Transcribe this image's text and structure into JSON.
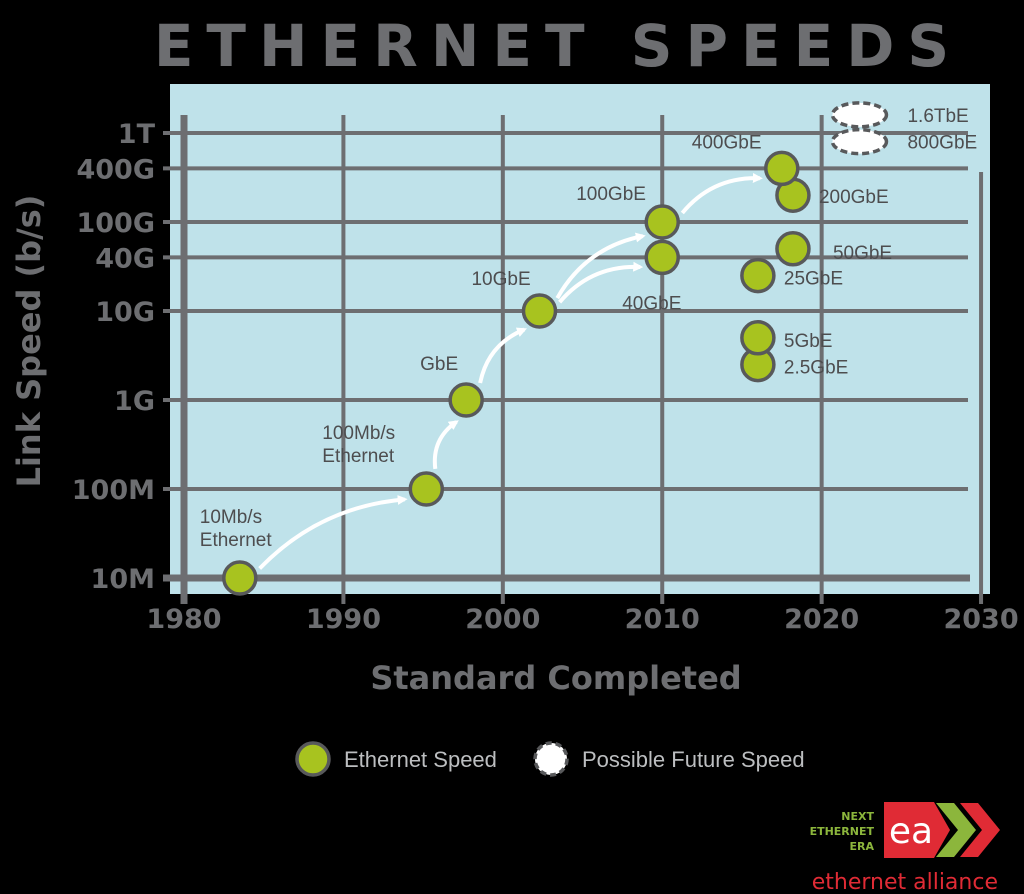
{
  "colors": {
    "background": "#000000",
    "plot_bg": "#bfe2ea",
    "grid": "#6d6e71",
    "text_gray": "#6d6e71",
    "point_fill": "#a8c31f",
    "point_stroke": "#58595b",
    "future_stroke": "#58595b",
    "arrow": "#ffffff",
    "logo_red": "#e02b35",
    "logo_green": "#8cb63c"
  },
  "chart_data": {
    "type": "scatter",
    "title": "ETHERNET SPEEDS",
    "xlabel": "Standard Completed",
    "ylabel": "Link Speed (b/s)",
    "xlim": [
      1980,
      2031
    ],
    "x_ticks": [
      1980,
      1990,
      2000,
      2010,
      2020,
      2030
    ],
    "y_scale": "log",
    "y_ticks": [
      {
        "label": "10M",
        "value": 10000000
      },
      {
        "label": "100M",
        "value": 100000000
      },
      {
        "label": "1G",
        "value": 1000000000
      },
      {
        "label": "10G",
        "value": 10000000000
      },
      {
        "label": "40G",
        "value": 40000000000
      },
      {
        "label": "100G",
        "value": 100000000000
      },
      {
        "label": "400G",
        "value": 400000000000
      },
      {
        "label": "1T",
        "value": 1000000000000
      }
    ],
    "grid": true,
    "series": [
      {
        "name": "Ethernet Speed",
        "points": [
          {
            "label": "10Mb/s\nEthernet",
            "x": 1983.5,
            "y": 10000000
          },
          {
            "label": "100Mb/s\nEthernet",
            "x": 1995.2,
            "y": 100000000
          },
          {
            "label": "GbE",
            "x": 1997.7,
            "y": 1000000000
          },
          {
            "label": "10GbE",
            "x": 2002.3,
            "y": 10000000000
          },
          {
            "label": "40GbE",
            "x": 2010,
            "y": 40000000000
          },
          {
            "label": "100GbE",
            "x": 2010,
            "y": 100000000000
          },
          {
            "label": "2.5GbE",
            "x": 2016,
            "y": 2500000000
          },
          {
            "label": "5GbE",
            "x": 2016,
            "y": 5000000000
          },
          {
            "label": "25GbE",
            "x": 2016,
            "y": 25000000000
          },
          {
            "label": "50GbE",
            "x": 2018.2,
            "y": 50000000000
          },
          {
            "label": "200GbE",
            "x": 2018.2,
            "y": 200000000000
          },
          {
            "label": "400GbE",
            "x": 2017.5,
            "y": 400000000000
          }
        ]
      },
      {
        "name": "Possible Future Speed",
        "points": [
          {
            "label": "800GbE",
            "x": 2023,
            "y": 800000000000
          },
          {
            "label": "1.6TbE",
            "x": 2023,
            "y": 1600000000000
          }
        ]
      }
    ],
    "arrows": [
      {
        "from": "10Mb/s\nEthernet",
        "to": "100Mb/s\nEthernet"
      },
      {
        "from": "100Mb/s\nEthernet",
        "to": "GbE"
      },
      {
        "from": "GbE",
        "to": "10GbE"
      },
      {
        "from": "10GbE",
        "to": "100GbE"
      },
      {
        "from": "10GbE",
        "to": "40GbE"
      },
      {
        "from": "100GbE",
        "to": "400GbE"
      }
    ],
    "legend": {
      "position": "bottom",
      "items": [
        {
          "label": "Ethernet Speed",
          "marker": "filled-circle"
        },
        {
          "label": "Possible Future Speed",
          "marker": "dashed-circle"
        }
      ]
    }
  },
  "logo": {
    "line1": "NEXT",
    "line2": "ETHERNET",
    "line3": "ERA",
    "mark": "ea",
    "name": "ethernet alliance"
  }
}
